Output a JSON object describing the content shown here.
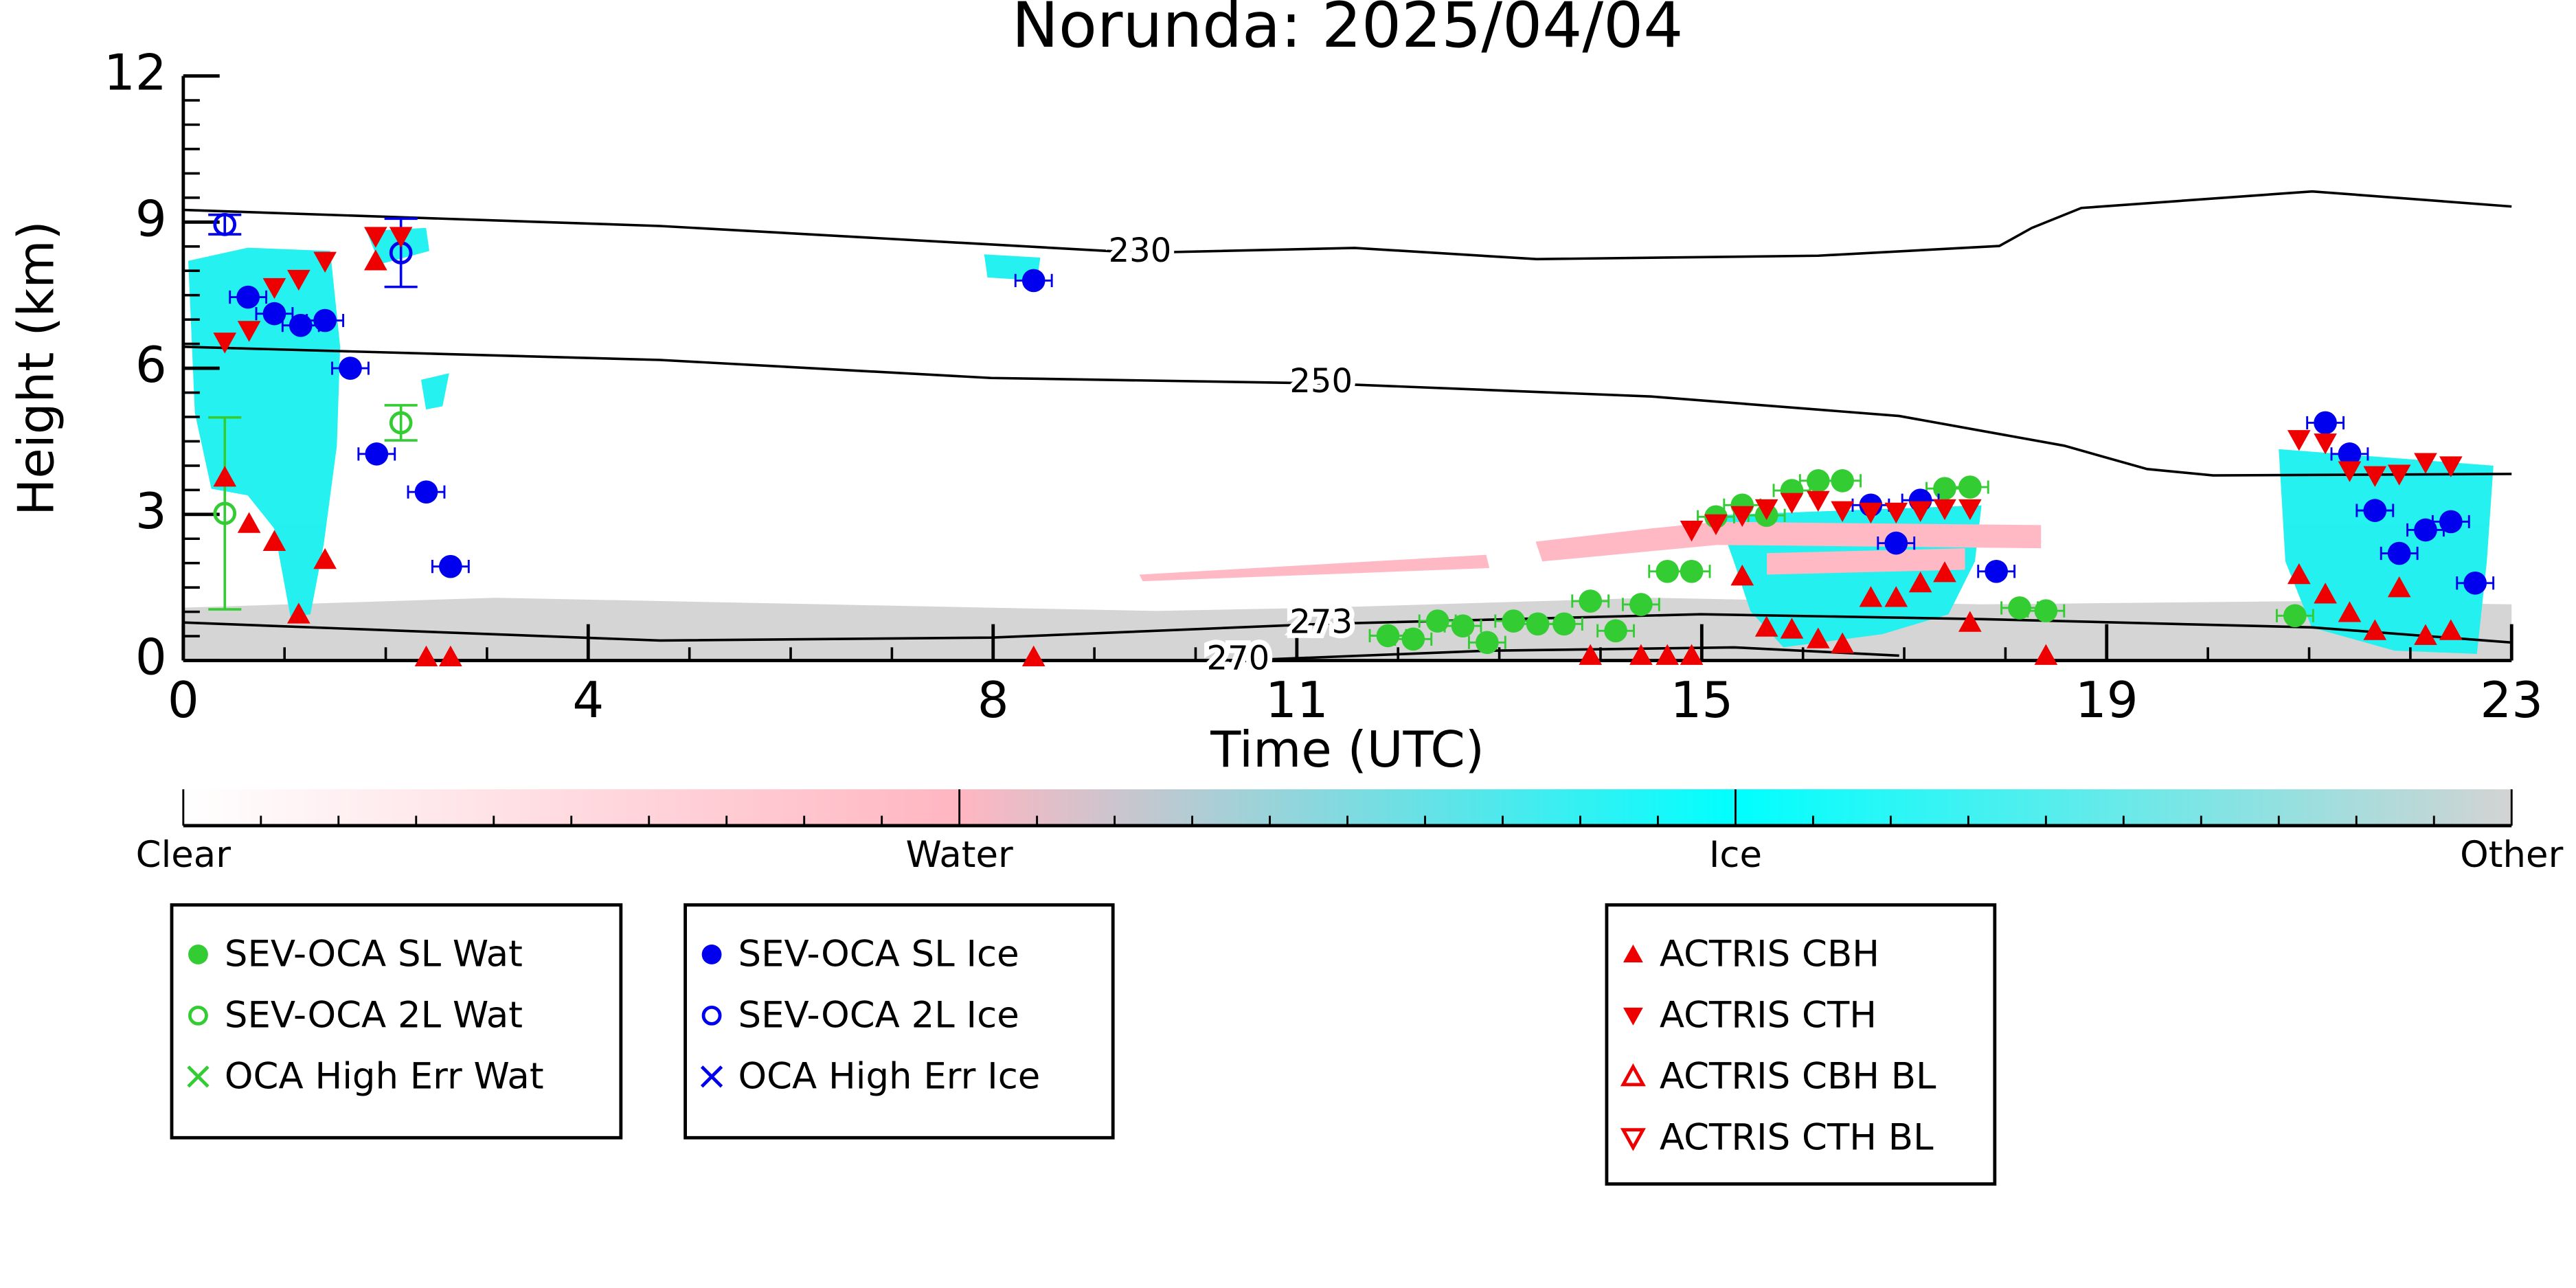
{
  "chart_data": {
    "type": "scatter",
    "title": "Norunda: 2025/04/04",
    "x_label": "Time (UTC)",
    "y_label": "Height (km)",
    "xlim": [
      0,
      23
    ],
    "ylim": [
      0,
      12
    ],
    "xticks": [
      0,
      4,
      8,
      11,
      15,
      19,
      23
    ],
    "yticks": [
      0,
      3,
      6,
      9,
      12
    ],
    "series": [
      {
        "name": "SEV-OCA SL Wat",
        "color": "#33cc33",
        "marker": "filled-circle",
        "x": [
          11.9,
          12.15,
          12.39,
          12.64,
          12.88,
          13.14,
          13.38,
          13.64,
          13.9,
          14.15,
          14.4,
          14.66,
          14.9,
          15.14,
          15.4,
          15.64,
          15.89,
          16.15,
          16.39,
          17.4,
          17.65,
          18.14,
          18.4,
          20.86
        ],
        "values": [
          0.51,
          0.44,
          0.81,
          0.71,
          0.37,
          0.81,
          0.75,
          0.75,
          1.22,
          0.61,
          1.15,
          1.83,
          1.83,
          2.95,
          3.19,
          2.98,
          3.49,
          3.69,
          3.69,
          3.53,
          3.56,
          1.08,
          1.02,
          0.92
        ]
      },
      {
        "name": "SEV-OCA 2L Wat",
        "color": "#33cc33",
        "marker": "open-circle",
        "x": [
          0.41,
          2.15
        ],
        "values": [
          3.02,
          4.88
        ],
        "errors": [
          1.97,
          0.36
        ]
      },
      {
        "name": "OCA High Err Wat",
        "color": "#33cc33",
        "marker": "x",
        "x": [],
        "values": []
      },
      {
        "name": "SEV-OCA SL Ice",
        "color": "#0000ee",
        "marker": "filled-circle",
        "x": [
          0.64,
          0.9,
          1.16,
          1.4,
          1.65,
          1.91,
          2.4,
          2.64,
          8.4,
          16.67,
          16.92,
          17.16,
          17.91,
          21.16,
          21.4,
          21.65,
          21.89,
          22.15,
          22.4,
          22.64
        ],
        "values": [
          7.46,
          7.12,
          6.88,
          6.98,
          6.0,
          4.24,
          3.46,
          1.93,
          7.8,
          3.19,
          2.41,
          3.29,
          1.83,
          4.88,
          4.24,
          3.08,
          2.2,
          2.68,
          2.85,
          1.59
        ]
      },
      {
        "name": "SEV-OCA 2L Ice",
        "color": "#0000ee",
        "marker": "open-circle",
        "x": [
          0.41,
          2.15
        ],
        "values": [
          8.95,
          8.37
        ],
        "errors": [
          0.2,
          0.7
        ]
      },
      {
        "name": "OCA High Err Ice",
        "color": "#0000ee",
        "marker": "x",
        "x": [],
        "values": []
      },
      {
        "name": "ACTRIS CBH",
        "color": "#ee0000",
        "marker": "filled-up",
        "x": [
          0.41,
          0.65,
          0.9,
          1.14,
          1.4,
          1.9,
          2.4,
          2.64,
          8.4,
          13.9,
          14.4,
          14.66,
          14.9,
          15.4,
          15.64,
          15.89,
          16.15,
          16.39,
          16.67,
          16.92,
          17.16,
          17.4,
          17.65,
          18.4,
          20.9,
          21.16,
          21.4,
          21.65,
          21.89,
          22.15,
          22.4
        ],
        "values": [
          3.76,
          2.81,
          2.44,
          0.95,
          2.07,
          8.2,
          0.07,
          0.07,
          0.07,
          0.1,
          0.1,
          0.1,
          0.1,
          1.73,
          0.68,
          0.64,
          0.44,
          0.34,
          1.29,
          1.29,
          1.59,
          1.8,
          0.78,
          0.1,
          1.76,
          1.36,
          0.98,
          0.61,
          1.49,
          0.51,
          0.61
        ]
      },
      {
        "name": "ACTRIS CTH",
        "color": "#ee0000",
        "marker": "filled-down",
        "x": [
          0.41,
          0.65,
          0.9,
          1.14,
          1.4,
          1.9,
          2.15,
          14.9,
          15.14,
          15.4,
          15.64,
          15.89,
          16.15,
          16.39,
          16.67,
          16.92,
          17.16,
          17.4,
          17.65,
          20.9,
          21.16,
          21.4,
          21.65,
          21.89,
          22.15,
          22.4
        ],
        "values": [
          6.54,
          6.78,
          7.66,
          7.83,
          8.2,
          8.71,
          8.71,
          2.68,
          2.81,
          2.98,
          3.12,
          3.25,
          3.29,
          3.08,
          3.05,
          3.05,
          3.08,
          3.12,
          3.12,
          4.54,
          4.47,
          3.9,
          3.8,
          3.83,
          4.07,
          4.0
        ]
      },
      {
        "name": "ACTRIS CBH BL",
        "color": "#ee0000",
        "marker": "open-up",
        "x": [],
        "values": []
      },
      {
        "name": "ACTRIS CTH BL",
        "color": "#ee0000",
        "marker": "open-down",
        "x": [],
        "values": []
      }
    ],
    "contours": [
      {
        "label": "230",
        "x": [
          0,
          4.71,
          9.45,
          11.57,
          13.37,
          16.15,
          17.94,
          18.26,
          18.75,
          21.03,
          23
        ],
        "values": [
          9.25,
          8.92,
          8.37,
          8.47,
          8.24,
          8.31,
          8.51,
          8.88,
          9.29,
          9.63,
          9.32
        ]
      },
      {
        "label": "250",
        "x": [
          0,
          4.71,
          7.98,
          11.24,
          14.5,
          16.95,
          18.58,
          19.4,
          20.05,
          23
        ],
        "values": [
          6.44,
          6.17,
          5.8,
          5.69,
          5.42,
          5.02,
          4.41,
          3.93,
          3.8,
          3.83
        ]
      },
      {
        "label": "273",
        "x": [
          0,
          4.71,
          7.98,
          11.24,
          14.99,
          17.77,
          21.03,
          23
        ],
        "values": [
          0.78,
          0.41,
          0.47,
          0.75,
          0.95,
          0.85,
          0.68,
          0.37
        ]
      },
      {
        "label": "270",
        "x": [
          10.42,
          12.87,
          15.32,
          16.95
        ],
        "values": [
          0,
          0.2,
          0.27,
          0.1
        ]
      }
    ],
    "colorbar": {
      "labels": [
        "Clear",
        "Water",
        "Ice",
        "Other"
      ],
      "colors": [
        "#ffffff",
        "#ffb6c1",
        "#00ffff",
        "#d3d3d3"
      ]
    }
  }
}
